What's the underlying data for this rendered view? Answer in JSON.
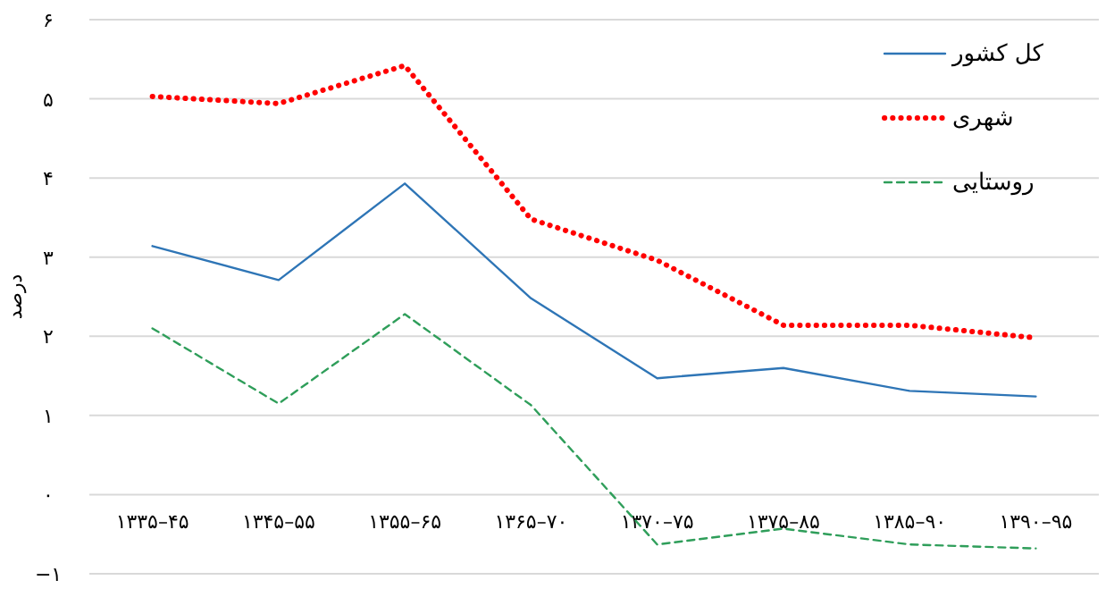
{
  "chart_data": {
    "type": "line",
    "ylabel": "درصد",
    "categories": [
      "۱۳۳۵–۴۵",
      "۱۳۴۵–۵۵",
      "۱۳۵۵–۶۵",
      "۱۳۶۵–۷۰",
      "۱۳۷۰–۷۵",
      "۱۳۷۵–۸۵",
      "۱۳۸۵–۹۰",
      "۱۳۹۰–۹۵"
    ],
    "series": [
      {
        "name": "کل کشور",
        "color": "#2e75b6",
        "line_style": "solid",
        "values": [
          3.14,
          2.71,
          3.93,
          2.48,
          1.47,
          1.6,
          1.31,
          1.24
        ]
      },
      {
        "name": "شهری",
        "color": "#ff0000",
        "line_style": "dotted",
        "values": [
          5.03,
          4.94,
          5.42,
          3.48,
          2.96,
          2.14,
          2.14,
          1.98
        ]
      },
      {
        "name": "روستایی",
        "color": "#2f9e5a",
        "line_style": "dashed",
        "values": [
          2.1,
          1.15,
          2.28,
          1.13,
          -0.63,
          -0.43,
          -0.63,
          -0.68
        ]
      }
    ],
    "ylim": [
      -1,
      6
    ],
    "yticks": [
      {
        "value": -1,
        "label": "−۱"
      },
      {
        "value": 0,
        "label": "۰"
      },
      {
        "value": 1,
        "label": "۱"
      },
      {
        "value": 2,
        "label": "۲"
      },
      {
        "value": 3,
        "label": "۳"
      },
      {
        "value": 4,
        "label": "۴"
      },
      {
        "value": 5,
        "label": "۵"
      },
      {
        "value": 6,
        "label": "۶"
      }
    ],
    "grid": "y",
    "legend": "top right"
  }
}
